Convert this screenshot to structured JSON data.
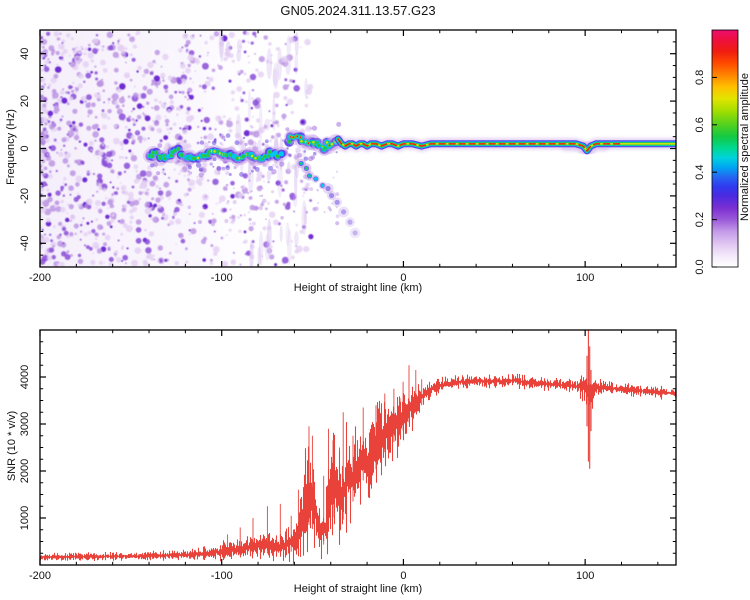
{
  "title": "GN05.2024.311.13.57.G23",
  "colors": {
    "frame": "#000000",
    "snr_line": "#e8423b",
    "noise_purple_light": "#e3d0f3",
    "noise_purple_mid": "#b990e2",
    "noise_purple_dark": "#8a4cd8",
    "noise_purple_deep": "#6217cf",
    "band_halo": "#c9a2e8",
    "band_blue": "#4b3be8",
    "band_cyan": "#00c6ee",
    "band_green": "#2bc73a",
    "band_yellow": "#d4e410",
    "band_red": "#f01c10"
  },
  "chart_data": [
    {
      "type": "heatmap",
      "name": "spectrogram",
      "xlabel": "Height of straight line (km)",
      "ylabel": "Frequency (Hz)",
      "xlim": [
        -200,
        150
      ],
      "ylim": [
        -50,
        50
      ],
      "xticks": [
        -200,
        -100,
        0,
        100
      ],
      "xtick_minor_step": 20,
      "yticks": [
        -40,
        -20,
        0,
        20,
        40
      ],
      "ytick_minor_step": 5,
      "colorbar": {
        "label": "Normalized spectral amplitude",
        "ticks": [
          0.0,
          0.2,
          0.4,
          0.6,
          0.8
        ],
        "lim": [
          0,
          1
        ],
        "colormap": [
          [
            0.0,
            "#ffffff"
          ],
          [
            0.04,
            "#f6eefb"
          ],
          [
            0.09,
            "#e4ccf3"
          ],
          [
            0.15,
            "#c49ae8"
          ],
          [
            0.2,
            "#9a59d8"
          ],
          [
            0.25,
            "#7a2fd2"
          ],
          [
            0.3,
            "#4b2ae0"
          ],
          [
            0.34,
            "#2f3bee"
          ],
          [
            0.38,
            "#2566f2"
          ],
          [
            0.42,
            "#00a4f2"
          ],
          [
            0.46,
            "#00d2de"
          ],
          [
            0.5,
            "#00d894"
          ],
          [
            0.55,
            "#13c943"
          ],
          [
            0.6,
            "#52d01e"
          ],
          [
            0.66,
            "#a5de00"
          ],
          [
            0.71,
            "#e2e400"
          ],
          [
            0.76,
            "#ffc000"
          ],
          [
            0.81,
            "#ff8400"
          ],
          [
            0.86,
            "#ff4a00"
          ],
          [
            0.91,
            "#f01c10"
          ],
          [
            0.96,
            "#ee1040"
          ],
          [
            1.0,
            "#ec0f70"
          ]
        ]
      },
      "noise_region": {
        "x_range_km": [
          -200,
          -52
        ],
        "y_range_hz": [
          -50,
          50
        ],
        "description": "dense purple speckle noise, fading in density from -110 km toward -52 km, with faint vertical streaks"
      },
      "ridge_blobby_a": [
        [
          -140,
          -3,
          0.45
        ],
        [
          -136,
          -2,
          0.55
        ],
        [
          -132,
          -4,
          0.5
        ],
        [
          -128,
          -2,
          0.6
        ],
        [
          -124,
          -1,
          0.55
        ],
        [
          -120,
          -3,
          0.6
        ],
        [
          -116,
          -5,
          0.55
        ],
        [
          -112,
          -4,
          0.6
        ],
        [
          -108,
          -2,
          0.65
        ],
        [
          -104,
          -1,
          0.6
        ],
        [
          -100,
          -3,
          0.7
        ],
        [
          -96,
          -2,
          0.62
        ],
        [
          -92,
          -4,
          0.58
        ],
        [
          -88,
          -3,
          0.66
        ],
        [
          -84,
          -2,
          0.62
        ],
        [
          -80,
          -4,
          0.72
        ],
        [
          -76,
          -3,
          0.6
        ],
        [
          -72,
          -2,
          0.52
        ],
        [
          -69,
          -3,
          0.45
        ],
        [
          -66,
          -2,
          0.35
        ]
      ],
      "ridge_blobby_b": [
        [
          -63,
          3,
          0.75
        ],
        [
          -60,
          5,
          0.85
        ],
        [
          -57,
          4,
          0.9
        ],
        [
          -54,
          3,
          0.8
        ],
        [
          -51,
          2,
          0.7
        ],
        [
          -49,
          3,
          0.75
        ],
        [
          -46,
          1,
          0.7
        ],
        [
          -44,
          0,
          0.65
        ],
        [
          -42,
          2,
          0.7
        ],
        [
          -40,
          1,
          0.75
        ],
        [
          -38,
          3,
          0.7
        ],
        [
          -36,
          4,
          0.8
        ]
      ],
      "ridge_smooth": [
        [
          -36,
          4,
          0.8
        ],
        [
          -34,
          2,
          0.75
        ],
        [
          -32,
          1,
          0.7
        ],
        [
          -30,
          2,
          0.75
        ],
        [
          -28,
          2,
          0.8
        ],
        [
          -26,
          1,
          0.75
        ],
        [
          -24,
          2,
          0.85
        ],
        [
          -22,
          2,
          0.8
        ],
        [
          -20,
          1,
          0.85
        ],
        [
          -18,
          2,
          0.9
        ],
        [
          -15,
          2,
          0.85
        ],
        [
          -12,
          1,
          0.9
        ],
        [
          -9,
          2,
          0.9
        ],
        [
          -6,
          2,
          0.92
        ],
        [
          -3,
          1,
          0.9
        ],
        [
          0,
          2,
          0.92
        ],
        [
          5,
          2,
          0.9
        ],
        [
          10,
          1,
          0.92
        ],
        [
          15,
          2,
          0.9
        ],
        [
          20,
          2,
          0.92
        ],
        [
          30,
          2,
          0.9
        ],
        [
          40,
          2,
          0.92
        ],
        [
          50,
          2,
          0.9
        ],
        [
          55,
          2,
          0.88
        ],
        [
          60,
          2,
          0.9
        ],
        [
          70,
          2,
          0.92
        ],
        [
          80,
          2,
          0.9
        ],
        [
          90,
          2,
          0.88
        ],
        [
          95,
          2,
          0.85
        ],
        [
          99,
          1,
          0.8
        ],
        [
          101,
          -1,
          0.75
        ],
        [
          103,
          1,
          0.8
        ],
        [
          106,
          2,
          0.85
        ],
        [
          110,
          2,
          0.9
        ],
        [
          120,
          2,
          0.88
        ],
        [
          130,
          2,
          0.85
        ],
        [
          140,
          2,
          0.8
        ],
        [
          150,
          2,
          0.75
        ]
      ],
      "red_core_max_km": 122,
      "bulges_km": [
        [
          50,
          78,
          20
        ],
        [
          88,
          108,
          15
        ],
        [
          116,
          150,
          12
        ]
      ],
      "branch": [
        [
          -57,
          -6
        ],
        [
          -54,
          -8
        ],
        [
          -51,
          -11
        ],
        [
          -48,
          -13
        ],
        [
          -45,
          -15
        ],
        [
          -42,
          -17
        ],
        [
          -39,
          -20
        ],
        [
          -36,
          -23
        ],
        [
          -33,
          -27
        ],
        [
          -30,
          -31
        ],
        [
          -27,
          -35
        ]
      ]
    },
    {
      "type": "line",
      "name": "snr",
      "xlabel": "Height of straight line (km)",
      "ylabel": "SNR (10 * v/v)",
      "xlim": [
        -200,
        150
      ],
      "ylim": [
        0,
        5000
      ],
      "xticks": [
        -200,
        -100,
        0,
        100
      ],
      "xtick_minor_step": 20,
      "yticks": [
        1000,
        2000,
        3000,
        4000
      ],
      "ytick_minor_step": 250,
      "envelope": [
        [
          -200,
          170,
          90
        ],
        [
          -180,
          175,
          90
        ],
        [
          -160,
          185,
          95
        ],
        [
          -140,
          195,
          100
        ],
        [
          -125,
          210,
          110
        ],
        [
          -110,
          240,
          140
        ],
        [
          -100,
          280,
          200
        ],
        [
          -92,
          330,
          260
        ],
        [
          -85,
          380,
          300
        ],
        [
          -78,
          430,
          350
        ],
        [
          -72,
          380,
          280
        ],
        [
          -66,
          420,
          320
        ],
        [
          -60,
          500,
          420
        ],
        [
          -56,
          900,
          800
        ],
        [
          -52,
          1500,
          1300
        ],
        [
          -49,
          1300,
          1150
        ],
        [
          -46,
          700,
          600
        ],
        [
          -43,
          800,
          700
        ],
        [
          -40,
          1600,
          1300
        ],
        [
          -37,
          1700,
          1100
        ],
        [
          -34,
          1300,
          1000
        ],
        [
          -31,
          1900,
          1200
        ],
        [
          -28,
          1800,
          900
        ],
        [
          -25,
          2100,
          900
        ],
        [
          -22,
          2300,
          1000
        ],
        [
          -19,
          2100,
          800
        ],
        [
          -16,
          2400,
          900
        ],
        [
          -13,
          2600,
          800
        ],
        [
          -10,
          2800,
          800
        ],
        [
          -7,
          2900,
          700
        ],
        [
          -4,
          3000,
          700
        ],
        [
          -1,
          3100,
          600
        ],
        [
          2,
          3250,
          550
        ],
        [
          5,
          3400,
          500
        ],
        [
          8,
          3500,
          400
        ],
        [
          12,
          3650,
          300
        ],
        [
          16,
          3750,
          220
        ],
        [
          20,
          3820,
          180
        ],
        [
          25,
          3860,
          160
        ],
        [
          30,
          3890,
          160
        ],
        [
          40,
          3920,
          150
        ],
        [
          50,
          3900,
          150
        ],
        [
          60,
          3930,
          150
        ],
        [
          70,
          3880,
          150
        ],
        [
          80,
          3850,
          140
        ],
        [
          90,
          3820,
          140
        ],
        [
          96,
          3800,
          140
        ],
        [
          100,
          3800,
          400
        ],
        [
          103,
          3600,
          500
        ],
        [
          105,
          3750,
          250
        ],
        [
          110,
          3780,
          150
        ],
        [
          120,
          3740,
          140
        ],
        [
          130,
          3710,
          130
        ],
        [
          140,
          3680,
          130
        ],
        [
          150,
          3650,
          130
        ]
      ],
      "spikes": [
        [
          -97,
          650
        ],
        [
          -90,
          800
        ],
        [
          -83,
          1000
        ],
        [
          -75,
          1250
        ],
        [
          -68,
          1300
        ],
        [
          -62,
          1050
        ],
        [
          -58,
          1600
        ],
        [
          -54,
          2450
        ],
        [
          -52,
          2950
        ],
        [
          -50,
          2750
        ],
        [
          -44,
          1900
        ],
        [
          -41,
          2900
        ],
        [
          -39,
          2650
        ],
        [
          -35,
          2500
        ],
        [
          -33,
          3250
        ],
        [
          -28,
          2750
        ],
        [
          -22,
          3350
        ],
        [
          -18,
          2900
        ],
        [
          -15,
          3400
        ],
        [
          -10,
          3650
        ],
        [
          -5,
          3750
        ],
        [
          -2,
          3550
        ],
        [
          0,
          3900
        ],
        [
          3,
          4250
        ],
        [
          7,
          4150
        ],
        [
          10,
          3950
        ]
      ],
      "transient_lines": [
        [
          101,
          2950,
          4450
        ],
        [
          101.8,
          2200,
          4990
        ],
        [
          102.5,
          2050,
          4650
        ],
        [
          103.2,
          2850,
          4150
        ]
      ]
    }
  ]
}
